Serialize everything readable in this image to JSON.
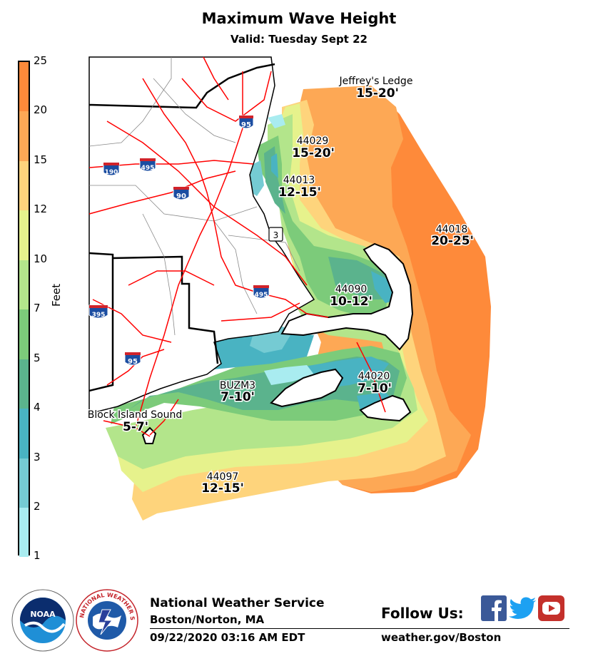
{
  "header": {
    "title": "Maximum Wave Height",
    "subtitle": "Valid: Tuesday Sept 22"
  },
  "legend": {
    "label": "Feet",
    "ticks": [
      "25",
      "20",
      "15",
      "12",
      "10",
      "7",
      "5",
      "4",
      "3",
      "2",
      "1"
    ],
    "colors": [
      "#fe8a3a",
      "#fda855",
      "#fed47c",
      "#e6f28c",
      "#b3e58b",
      "#7ccb7a",
      "#5bb38d",
      "#49b3c2",
      "#75cbd3",
      "#a9ecf0"
    ]
  },
  "map": {
    "labels": [
      {
        "name": "Jeffrey's Ledge",
        "range": "15-20'"
      },
      {
        "name": "44029",
        "range": "15-20'"
      },
      {
        "name": "44013",
        "range": "12-15'"
      },
      {
        "name": "44018",
        "range": "20-25'"
      },
      {
        "name": "44090",
        "range": "10-12'"
      },
      {
        "name": "44020",
        "range": "7-10'"
      },
      {
        "name": "BUZM3",
        "range": "7-10'"
      },
      {
        "name": "Block Island Sound",
        "range": "5-7'"
      },
      {
        "name": "44097",
        "range": "12-15'"
      }
    ],
    "shields": [
      "95",
      "190",
      "495",
      "90",
      "3",
      "495",
      "395",
      "95"
    ],
    "colors": {
      "water_zone_colors": "wave height fill",
      "roads": "#ff0000",
      "boundaries": "#000000"
    }
  },
  "footer": {
    "agency": "National Weather Service",
    "office": "Boston/Norton, MA",
    "timestamp": "09/22/2020 03:16 AM EDT",
    "follow": "Follow Us:",
    "website": "weather.gov/Boston",
    "noaa_text": "NOAA",
    "nws_text": "NATIONAL WEATHER SERVICE"
  }
}
